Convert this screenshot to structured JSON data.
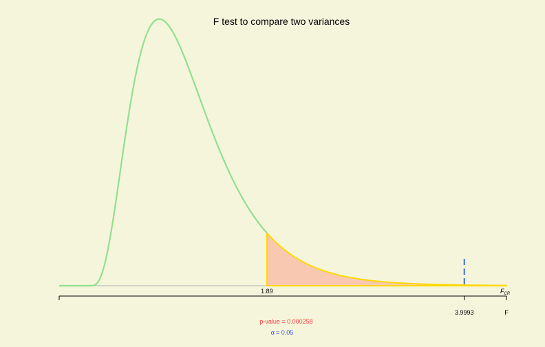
{
  "chart_data": {
    "type": "area",
    "title": "F test to compare two variances",
    "df1": 9,
    "df2": 39,
    "xlim": [
      -0.33,
      4.45
    ],
    "ylim": [
      0,
      0.78
    ],
    "critical_value": 1.89,
    "critical_label": "1.89",
    "observed_value": 3.9993,
    "observed_label": "3.9993",
    "axis_end_label": "F",
    "fcr_label": "F",
    "fcr_subscript": "CR",
    "p_value_text": "p-value = 0.000258",
    "alpha_symbol": "α",
    "alpha_text": "= 0.05",
    "colors": {
      "background": "#f5f5dc",
      "density_curve": "#90e090",
      "rejection_fill": "#f8c8b0",
      "rejection_outline": "#ffd700",
      "baseline": "#b0b0b0",
      "observed_line": "#3c6ee6",
      "p_value": "#ff4040",
      "alpha": "#3c50dc"
    }
  }
}
